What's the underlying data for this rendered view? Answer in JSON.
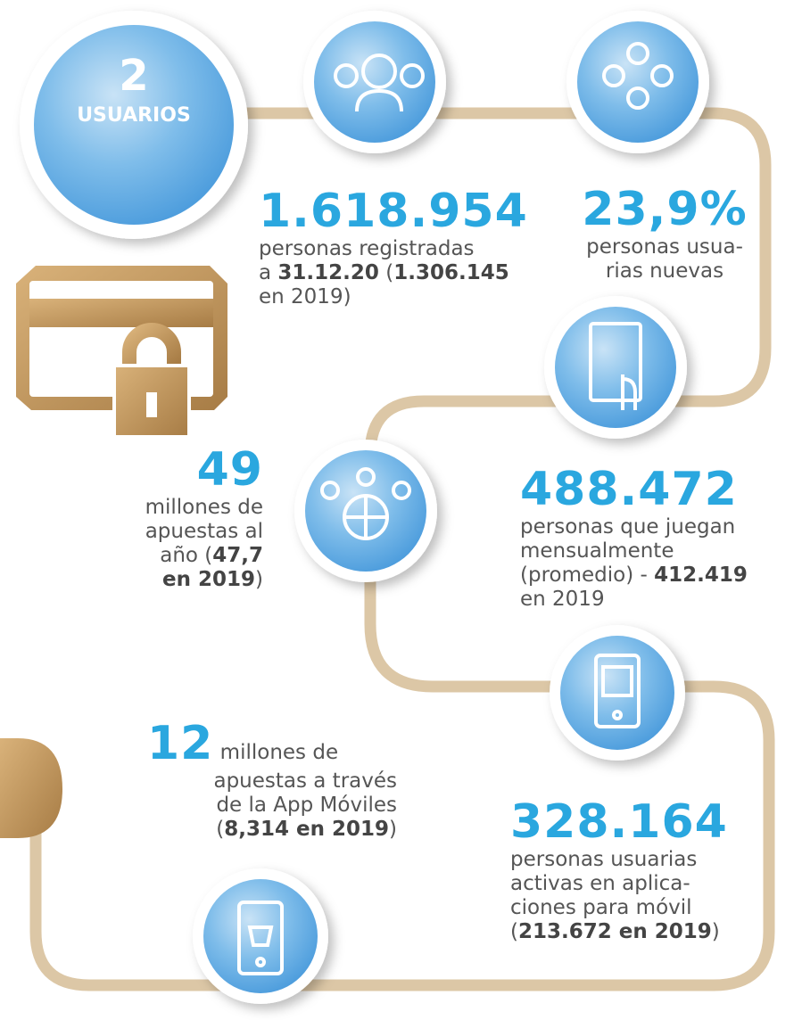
{
  "header": {
    "number": "2",
    "title": "USUARIOS"
  },
  "stats": [
    {
      "number": "1.618.954",
      "lines": [
        [
          "personas registradas"
        ],
        [
          "a ",
          {
            "text": "31.12.20",
            "bold": true
          },
          " (",
          {
            "text": "1.306.145",
            "bold": true
          }
        ],
        [
          "en 2019)"
        ]
      ]
    },
    {
      "number": "23,9%",
      "lines": [
        [
          "personas usua-"
        ],
        [
          "rias nuevas"
        ]
      ]
    },
    {
      "number": "49",
      "lines": [
        [
          "millones de"
        ],
        [
          "apuestas al"
        ],
        [
          "año (",
          {
            "text": "47,7",
            "bold": true
          }
        ],
        [
          {
            "text": "en 2019",
            "bold": true
          },
          ")"
        ]
      ]
    },
    {
      "number": "488.472",
      "lines": [
        [
          "personas que juegan"
        ],
        [
          "mensualmente"
        ],
        [
          "(promedio) - ",
          {
            "text": "412.419",
            "bold": true
          }
        ],
        [
          "en 2019"
        ]
      ]
    },
    {
      "number": "12",
      "lines": [
        [
          " millones de"
        ],
        [
          "apuestas a través"
        ],
        [
          "de la App Móviles"
        ],
        [
          "(",
          {
            "text": "8,314 en 2019",
            "bold": true
          },
          ")"
        ]
      ]
    },
    {
      "number": "328.164",
      "lines": [
        [
          "personas usuarias"
        ],
        [
          "activas en aplica-"
        ],
        [
          "ciones para móvil"
        ],
        [
          "(",
          {
            "text": "213.672 en 2019",
            "bold": true
          },
          ")"
        ]
      ]
    }
  ]
}
